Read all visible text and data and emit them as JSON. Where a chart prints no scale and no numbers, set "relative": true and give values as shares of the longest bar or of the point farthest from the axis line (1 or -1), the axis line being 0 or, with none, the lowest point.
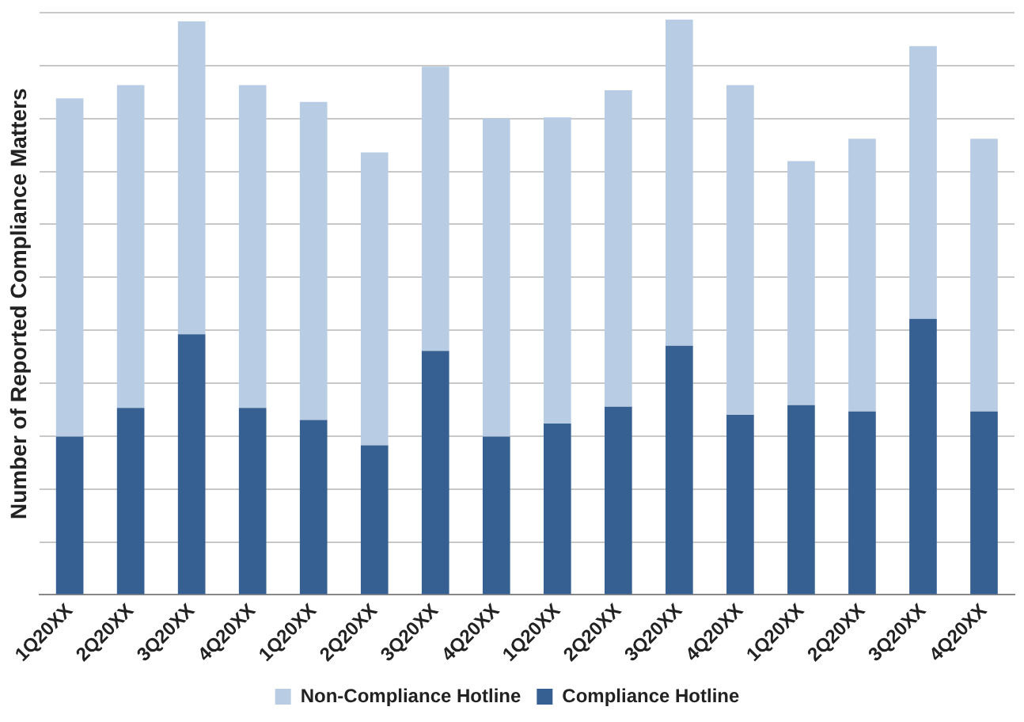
{
  "chart_data": {
    "type": "bar",
    "stacked": true,
    "relative": true,
    "ylabel": "Number of Reported Compliance Matters",
    "grid": "y",
    "legend": "bottom",
    "categories": [
      "1Q20XX",
      "2Q20XX",
      "3Q20XX",
      "4Q20XX",
      "1Q20XX",
      "2Q20XX",
      "3Q20XX",
      "4Q20XX",
      "1Q20XX",
      "2Q20XX",
      "3Q20XX",
      "4Q20XX",
      "1Q20XX",
      "2Q20XX",
      "3Q20XX",
      "4Q20XX"
    ],
    "series": [
      {
        "name": "Compliance Hotline",
        "color": "#376092",
        "values": [
          0.275,
          0.325,
          0.453,
          0.325,
          0.304,
          0.26,
          0.424,
          0.275,
          0.298,
          0.327,
          0.433,
          0.313,
          0.33,
          0.319,
          0.48,
          0.319
        ]
      },
      {
        "name": "Non-Compliance Hotline",
        "color": "#b8cce4",
        "values": [
          0.588,
          0.561,
          0.544,
          0.561,
          0.553,
          0.509,
          0.494,
          0.553,
          0.532,
          0.55,
          0.567,
          0.573,
          0.424,
          0.474,
          0.474,
          0.474
        ]
      }
    ]
  }
}
